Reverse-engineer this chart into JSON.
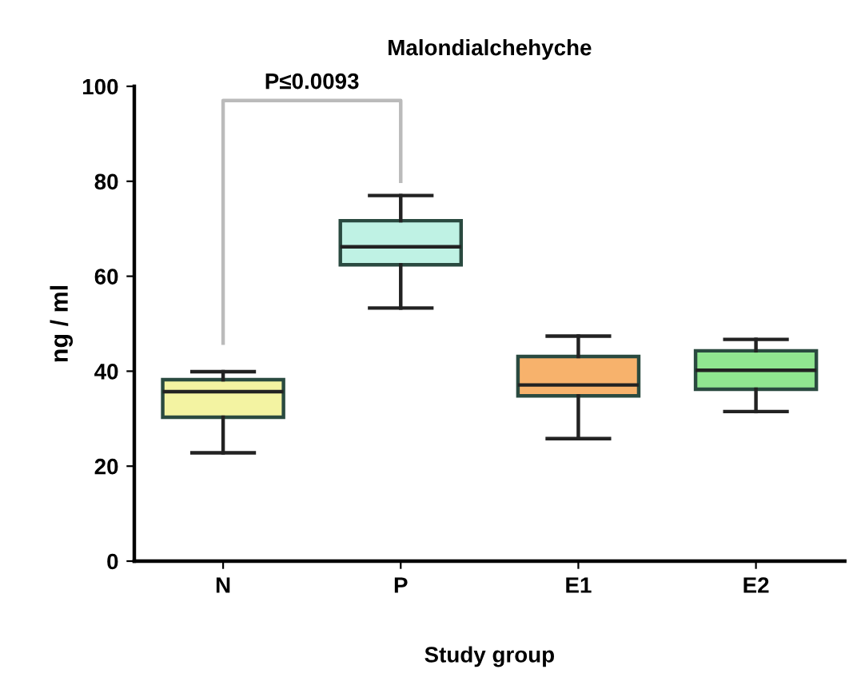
{
  "chart_data": {
    "type": "box",
    "title": "Malondialchehyche",
    "xlabel": "Study group",
    "ylabel": "ng / ml",
    "categories": [
      "N",
      "P",
      "E1",
      "E2"
    ],
    "colors": [
      "#f3f3a2",
      "#bff2e4",
      "#f7b26c",
      "#90e690"
    ],
    "boxes": [
      {
        "low": 22.8,
        "q1": 30.3,
        "median": 35.7,
        "q3": 38.2,
        "high": 39.9
      },
      {
        "low": 53.3,
        "q1": 62.4,
        "median": 66.2,
        "q3": 71.7,
        "high": 77.0
      },
      {
        "low": 25.8,
        "q1": 34.8,
        "median": 37.1,
        "q3": 43.1,
        "high": 47.4
      },
      {
        "low": 31.5,
        "q1": 36.2,
        "median": 40.2,
        "q3": 44.3,
        "high": 46.7
      }
    ],
    "ylim": [
      0,
      100
    ],
    "yticks": [
      0,
      20,
      40,
      60,
      80,
      100
    ],
    "grid": false,
    "annotations": [
      "P≤0.0093"
    ]
  }
}
